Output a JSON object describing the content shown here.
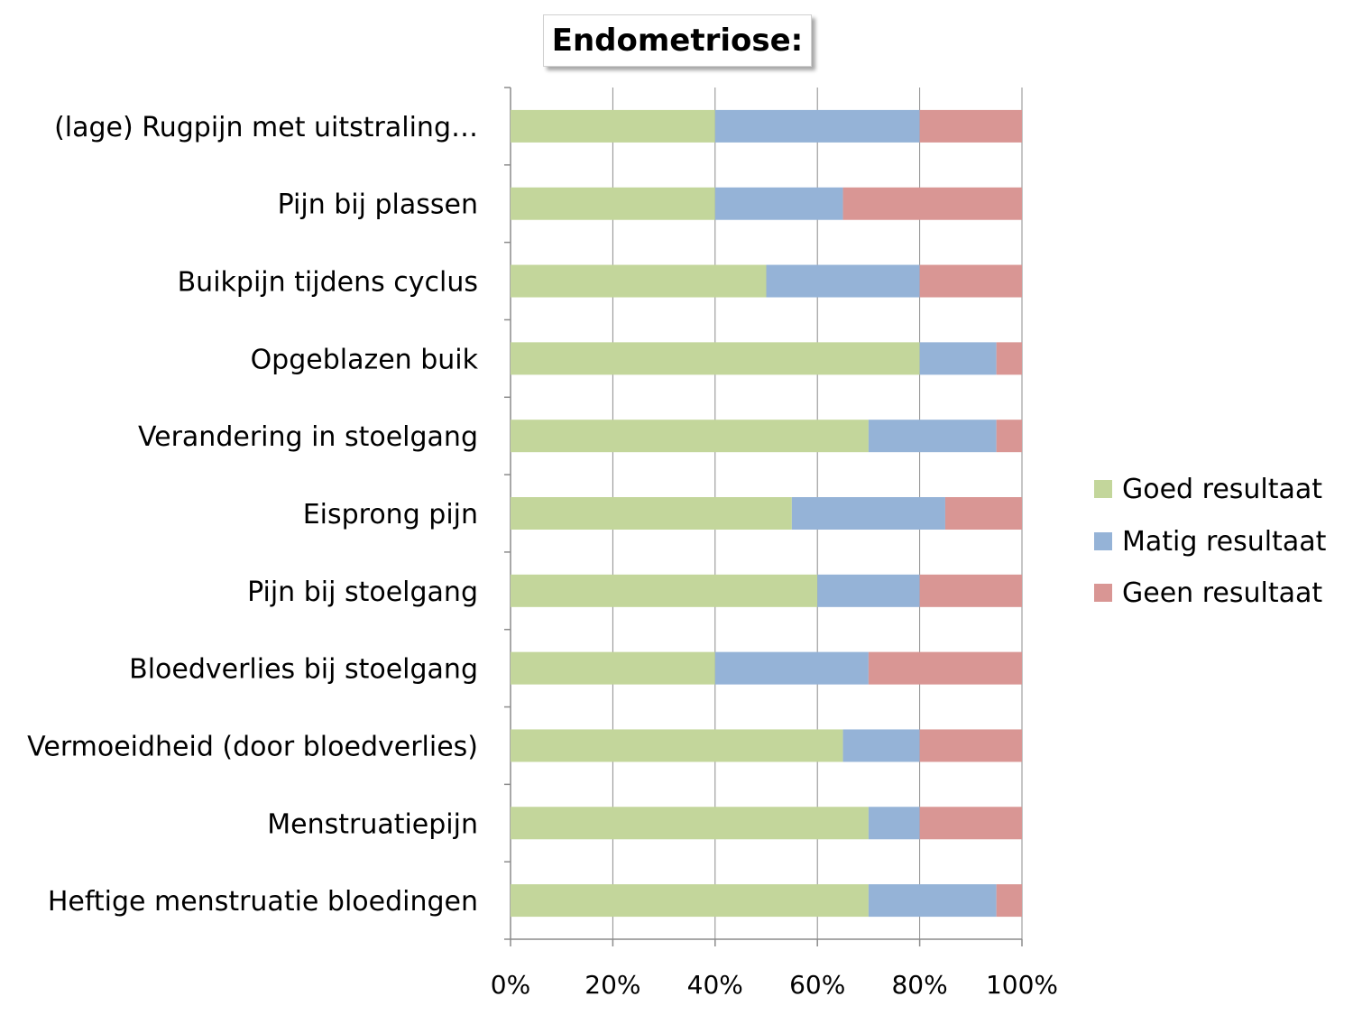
{
  "chart_data": {
    "type": "bar",
    "orientation": "horizontal",
    "stacked": true,
    "title": "Endometriose:",
    "categories": [
      "(lage) Rugpijn met uitstraling…",
      "Pijn bij plassen",
      "Buikpijn tijdens cyclus",
      "Opgeblazen buik",
      "Verandering in stoelgang",
      "Eisprong pijn",
      "Pijn bij stoelgang",
      "Bloedverlies bij stoelgang",
      "Vermoeidheid (door bloedverlies)",
      "Menstruatiepijn",
      "Heftige menstruatie bloedingen"
    ],
    "series": [
      {
        "name": "Goed resultaat",
        "color": "#c3d69b",
        "values": [
          40,
          40,
          50,
          80,
          70,
          55,
          60,
          40,
          65,
          70,
          70
        ]
      },
      {
        "name": "Matig resultaat",
        "color": "#95b3d7",
        "values": [
          40,
          25,
          30,
          15,
          25,
          30,
          20,
          30,
          15,
          10,
          25
        ]
      },
      {
        "name": "Geen resultaat",
        "color": "#d99694",
        "values": [
          20,
          35,
          20,
          5,
          5,
          15,
          20,
          30,
          20,
          20,
          5
        ]
      }
    ],
    "xlim": [
      0,
      100
    ],
    "xticks": [
      "0%",
      "20%",
      "40%",
      "60%",
      "80%",
      "100%"
    ],
    "grid": true,
    "legend_position": "right"
  }
}
